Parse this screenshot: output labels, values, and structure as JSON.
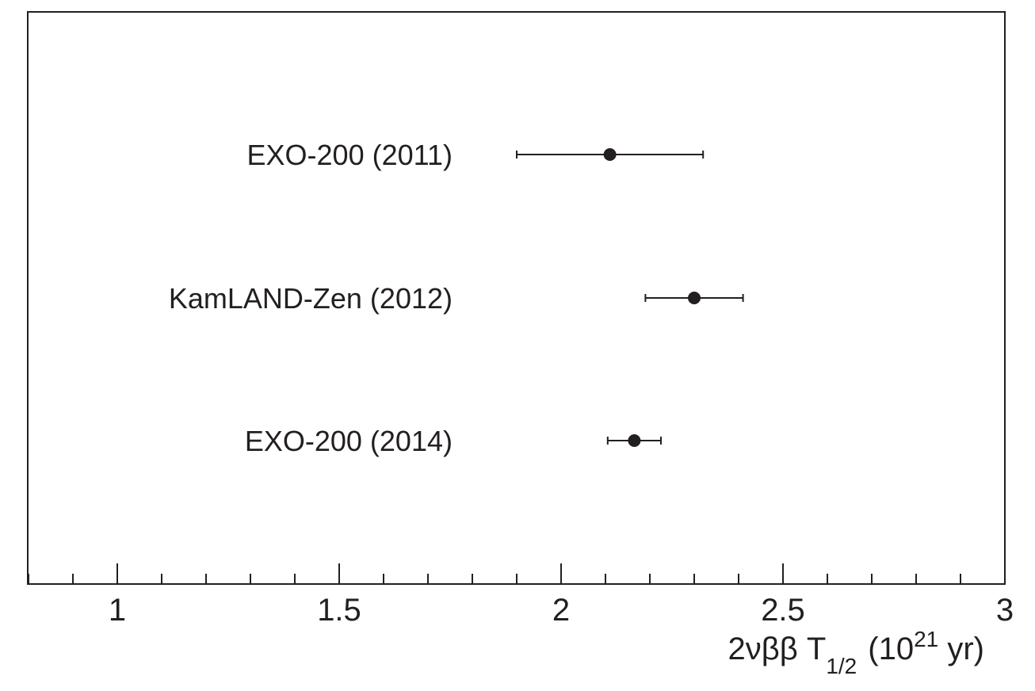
{
  "chart_data": {
    "type": "scatter",
    "orientation": "horizontal-error-bars",
    "title": "",
    "xlabel": {
      "main": "2νββ T",
      "subscript": "1/2",
      "unit_open": "(10",
      "superscript": "21",
      "unit_close": " yr)"
    },
    "ylabel": "",
    "xlim": [
      0.8,
      3.0
    ],
    "x_major_ticks": [
      1,
      1.5,
      2,
      2.5,
      3
    ],
    "x_tick_labels": [
      "1",
      "1.5",
      "2",
      "2.5",
      "3"
    ],
    "x_minor_step": 0.1,
    "grid": false,
    "legend": "none",
    "points": [
      {
        "label": "EXO-200 (2011)",
        "value": 2.11,
        "err_low": 1.9,
        "err_high": 2.32
      },
      {
        "label": "KamLAND-Zen (2012)",
        "value": 2.3,
        "err_low": 2.19,
        "err_high": 2.41
      },
      {
        "label": "EXO-200 (2014)",
        "value": 2.165,
        "err_low": 2.105,
        "err_high": 2.225
      }
    ],
    "colors": {
      "marker": "#231f20",
      "axis": "#231f20",
      "background": "#ffffff"
    }
  }
}
